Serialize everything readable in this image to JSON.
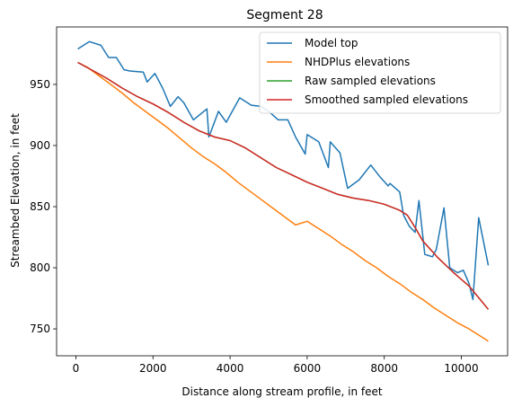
{
  "chart_data": {
    "type": "line",
    "title": "Segment 28",
    "xlabel": "Distance along stream profile, in feet",
    "ylabel": "Streambed Elevation, in feet",
    "xlim": [
      -500,
      11200
    ],
    "ylim": [
      728,
      997
    ],
    "xticks": [
      0,
      2000,
      4000,
      6000,
      8000,
      10000
    ],
    "yticks": [
      750,
      800,
      850,
      900,
      950
    ],
    "grid": false,
    "legend_position": "top-right",
    "series": [
      {
        "name": "Model top",
        "color": "#1f77b4",
        "x": [
          50,
          350,
          650,
          850,
          1050,
          1250,
          1400,
          1750,
          1850,
          2050,
          2250,
          2450,
          2650,
          2800,
          3050,
          3400,
          3450,
          3700,
          3900,
          4250,
          4550,
          4800,
          5000,
          5250,
          5500,
          5700,
          5950,
          6000,
          6300,
          6550,
          6600,
          6850,
          7050,
          7350,
          7650,
          7900,
          8100,
          8150,
          8400,
          8500,
          8650,
          8800,
          8900,
          9050,
          9250,
          9350,
          9550,
          9700,
          9900,
          10050,
          10200,
          10300,
          10450,
          10700
        ],
        "y": [
          979,
          985,
          982,
          972,
          972,
          962,
          961,
          960,
          952,
          959,
          947,
          932,
          940,
          935,
          921,
          930,
          907,
          928,
          919,
          939,
          933,
          932,
          928,
          921,
          921,
          907,
          893,
          909,
          903,
          882,
          903,
          894,
          865,
          872,
          884,
          874,
          867,
          869,
          862,
          843,
          834,
          829,
          855,
          811,
          809,
          815,
          849,
          800,
          796,
          798,
          787,
          774,
          841,
          802
        ]
      },
      {
        "name": "NHDPlus elevations",
        "color": "#ff7f0e",
        "x": [
          50,
          300,
          600,
          900,
          1200,
          1500,
          1800,
          2100,
          2400,
          2700,
          3000,
          3300,
          3600,
          3900,
          4200,
          4500,
          4800,
          5100,
          5400,
          5700,
          6000,
          6300,
          6600,
          6900,
          7200,
          7500,
          7800,
          8100,
          8400,
          8700,
          9000,
          9300,
          9600,
          9900,
          10200,
          10500,
          10700
        ],
        "y": [
          968,
          964,
          957,
          950,
          943,
          935,
          928,
          921,
          914,
          906,
          898,
          891,
          885,
          878,
          870,
          863,
          856,
          849,
          842,
          835,
          838,
          832,
          826,
          819,
          813,
          806,
          800,
          793,
          787,
          780,
          774,
          767,
          761,
          755,
          750,
          744,
          740
        ]
      },
      {
        "name": "Raw sampled elevations",
        "color": "#2ca02c",
        "x": [
          50,
          400,
          800,
          1200,
          1600,
          2000,
          2400,
          2800,
          3200,
          3600,
          4000,
          4400,
          4800,
          5200,
          5600,
          6000,
          6400,
          6800,
          7200,
          7600,
          8000,
          8400,
          8600,
          8800,
          9000,
          9400,
          9800,
          10200,
          10700
        ],
        "y": [
          968,
          962,
          955,
          947,
          940,
          934,
          927,
          919,
          912,
          907,
          904,
          898,
          890,
          882,
          876,
          870,
          865,
          860,
          857,
          855,
          852,
          847,
          843,
          833,
          822,
          808,
          796,
          785,
          766
        ]
      },
      {
        "name": "Smoothed sampled elevations",
        "color": "#d62728",
        "x": [
          50,
          400,
          800,
          1200,
          1600,
          2000,
          2400,
          2800,
          3200,
          3600,
          4000,
          4400,
          4800,
          5200,
          5600,
          6000,
          6400,
          6800,
          7200,
          7600,
          8000,
          8400,
          8600,
          8800,
          9000,
          9400,
          9800,
          10200,
          10700
        ],
        "y": [
          968,
          962,
          955,
          947,
          940,
          934,
          927,
          919,
          912,
          907,
          904,
          898,
          890,
          882,
          876,
          870,
          865,
          860,
          857,
          855,
          852,
          847,
          843,
          833,
          822,
          808,
          796,
          785,
          766
        ]
      }
    ]
  }
}
